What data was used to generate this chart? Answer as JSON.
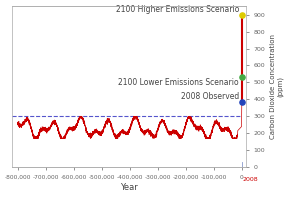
{
  "xlabel": "Year",
  "ylabel": "Carbon Dioxide Concentration\n(ppm)",
  "xlim": [
    -820000,
    15000
  ],
  "ylim": [
    0,
    950
  ],
  "yticks": [
    0,
    100,
    200,
    300,
    400,
    500,
    600,
    700,
    800,
    900
  ],
  "xticks": [
    -800000,
    -700000,
    -600000,
    -500000,
    -400000,
    -300000,
    -200000,
    -100000,
    0
  ],
  "xtick_labels": [
    "-800,000",
    "-700,000",
    "-600,000",
    "-500,000",
    "-400,000",
    "-300,000",
    "-200,000",
    "-100,000",
    "0"
  ],
  "dashed_line_y": 300,
  "dashed_line_color": "#5555cc",
  "line_color": "#cc0000",
  "point_2008_y": 385,
  "point_2008_color": "#2244bb",
  "point_lower_y": 530,
  "point_lower_color": "#44aa44",
  "point_higher_y": 900,
  "point_higher_color": "#ddcc00",
  "label_2008": "2008 Observed",
  "label_lower": "2100 Lower Emissions Scenario",
  "label_higher": "2100 Higher Emissions Scenario",
  "background_color": "#ffffff",
  "text_color": "#444444",
  "font_size": 5.5,
  "year_label_color": "#cc0000",
  "spike_x": 0,
  "vline_color": "#8899cc"
}
